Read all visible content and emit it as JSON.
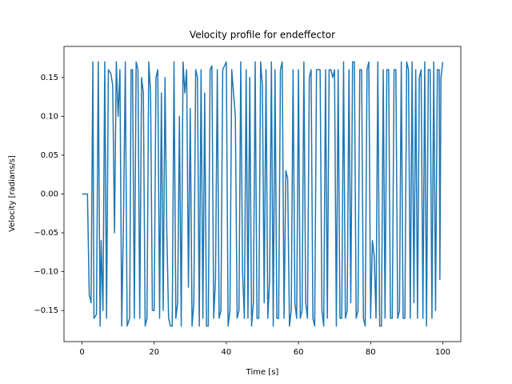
{
  "chart_data": {
    "type": "line",
    "title": "Velocity profile for endeffector",
    "x_label": "Time [s]",
    "y_label": "Velocity [radians/s]",
    "color": "#1f77b4",
    "grid": false,
    "xlim": [
      -5,
      105
    ],
    "ylim": [
      -0.19,
      0.19
    ],
    "xticks": [
      0,
      20,
      40,
      60,
      80,
      100
    ],
    "yticks": [
      {
        "value": -0.15,
        "label": "−0.15"
      },
      {
        "value": -0.1,
        "label": "−0.10"
      },
      {
        "value": -0.05,
        "label": "−0.05"
      },
      {
        "value": 0,
        "label": "0.00"
      },
      {
        "value": 0.05,
        "label": "0.05"
      },
      {
        "value": 0.1,
        "label": "0.10"
      },
      {
        "value": 0.15,
        "label": "0.15"
      }
    ],
    "x": [
      0,
      1,
      1.5,
      2,
      2.5,
      3,
      3.3,
      4,
      4.5,
      5,
      5.3,
      5.8,
      6.3,
      6.8,
      7.3,
      8,
      8.5,
      9,
      9.5,
      10,
      10.5,
      11,
      11.5,
      12,
      12.5,
      13.2,
      13.6,
      14,
      14.5,
      15,
      15.5,
      16,
      16.5,
      17,
      17.5,
      18,
      18.5,
      19,
      19.5,
      20,
      20.5,
      21,
      21.5,
      22,
      22.5,
      23,
      23.5,
      24,
      24.5,
      25,
      25.5,
      26,
      26.5,
      27,
      27.5,
      28,
      28.5,
      29,
      29.5,
      30,
      30.5,
      31,
      31.5,
      32,
      32.5,
      33,
      33.5,
      34,
      34.5,
      35,
      35.5,
      36,
      36.5,
      37,
      37.5,
      38,
      38.5,
      39,
      39.5,
      40,
      40.5,
      41,
      41.5,
      42,
      42.5,
      43,
      43.5,
      44,
      44.5,
      45,
      45.5,
      46,
      46.5,
      47,
      47.5,
      48,
      48.5,
      49,
      49.5,
      50,
      50.5,
      51,
      51.5,
      52,
      52.5,
      53,
      53.5,
      54,
      54.5,
      55,
      55.5,
      56,
      56.5,
      57,
      57.5,
      58,
      58.5,
      59,
      59.5,
      60,
      60.5,
      61,
      61.5,
      62,
      62.5,
      63,
      63.5,
      64,
      64.5,
      65,
      65.5,
      66,
      66.5,
      67,
      67.5,
      68,
      68.5,
      69,
      69.5,
      70,
      70.5,
      71,
      71.5,
      72,
      72.5,
      73,
      73.5,
      74,
      74.5,
      75,
      75.5,
      76,
      76.5,
      77,
      77.5,
      78,
      78.5,
      79,
      79.5,
      80,
      80.5,
      81,
      81.5,
      82,
      82.5,
      83,
      83.5,
      84,
      84.5,
      85,
      85.5,
      86,
      86.5,
      87,
      87.5,
      88,
      88.5,
      89,
      89.5,
      90,
      90.5,
      91,
      91.5,
      92,
      92.5,
      93,
      93.5,
      94,
      94.5,
      95,
      95.5,
      96,
      96.5,
      97,
      97.5,
      98,
      98.5,
      99,
      99.2,
      99.5,
      100
    ],
    "values": [
      0,
      0,
      0,
      -0.13,
      -0.14,
      0.17,
      -0.16,
      -0.155,
      0.17,
      -0.17,
      -0.06,
      -0.15,
      0.17,
      -0.16,
      0.16,
      0.155,
      0.14,
      -0.05,
      0.17,
      0.1,
      0.16,
      -0.17,
      -0.03,
      0.17,
      -0.17,
      -0.16,
      0.16,
      0.16,
      -0.16,
      0.17,
      0.16,
      -0.16,
      0.15,
      0.13,
      -0.17,
      -0.16,
      0.17,
      0.13,
      -0.15,
      -0.15,
      0.15,
      0.16,
      -0.16,
      0.13,
      -0.15,
      0.15,
      -0.05,
      -0.16,
      -0.17,
      -0.17,
      0.17,
      -0.16,
      -0.14,
      0.1,
      -0.17,
      0.17,
      0.13,
      0.16,
      -0.12,
      0.11,
      -0.17,
      -0.14,
      0.16,
      0.15,
      -0.17,
      0.16,
      -0.16,
      0.13,
      -0.17,
      -0.17,
      0.16,
      0.165,
      -0.16,
      -0.11,
      0.16,
      -0.16,
      -0.15,
      0.16,
      0.165,
      0.17,
      -0.17,
      -0.15,
      0.16,
      0.13,
      0.1,
      -0.16,
      -0.15,
      0.17,
      -0.1,
      -0.16,
      0.16,
      -0.16,
      0.15,
      -0.17,
      -0.14,
      0.17,
      -0.16,
      -0.16,
      0.17,
      0.14,
      -0.14,
      0.16,
      -0.16,
      -0.11,
      0.17,
      -0.17,
      0.16,
      -0.16,
      -0.16,
      0.16,
      0.17,
      -0.16,
      0.03,
      0.02,
      -0.17,
      -0.15,
      0.16,
      -0.14,
      -0.16,
      0.16,
      -0.16,
      -0.15,
      0.17,
      -0.14,
      -0.16,
      0.15,
      0.16,
      -0.16,
      -0.17,
      0.16,
      0.16,
      0.16,
      -0.15,
      -0.17,
      0.16,
      -0.16,
      0.16,
      0.16,
      0.15,
      0.16,
      -0.17,
      0.16,
      -0.16,
      -0.16,
      0.17,
      -0.16,
      -0.15,
      0.16,
      -0.14,
      0.17,
      0.17,
      -0.16,
      -0.15,
      0.16,
      0.16,
      -0.16,
      -0.17,
      0.16,
      0.17,
      -0.16,
      -0.06,
      -0.08,
      -0.16,
      0.17,
      -0.17,
      -0.17,
      0.16,
      -0.16,
      0.16,
      0.16,
      -0.16,
      -0.16,
      0.16,
      0.16,
      -0.16,
      -0.15,
      0.17,
      -0.16,
      -0.16,
      0.17,
      0.16,
      -0.16,
      0.17,
      -0.14,
      0.16,
      -0.16,
      0.15,
      0.16,
      -0.16,
      0.17,
      -0.17,
      0.16,
      0.16,
      -0.16,
      0.17,
      -0.15,
      0.16,
      0.16,
      -0.11,
      0.15,
      0.17
    ]
  }
}
